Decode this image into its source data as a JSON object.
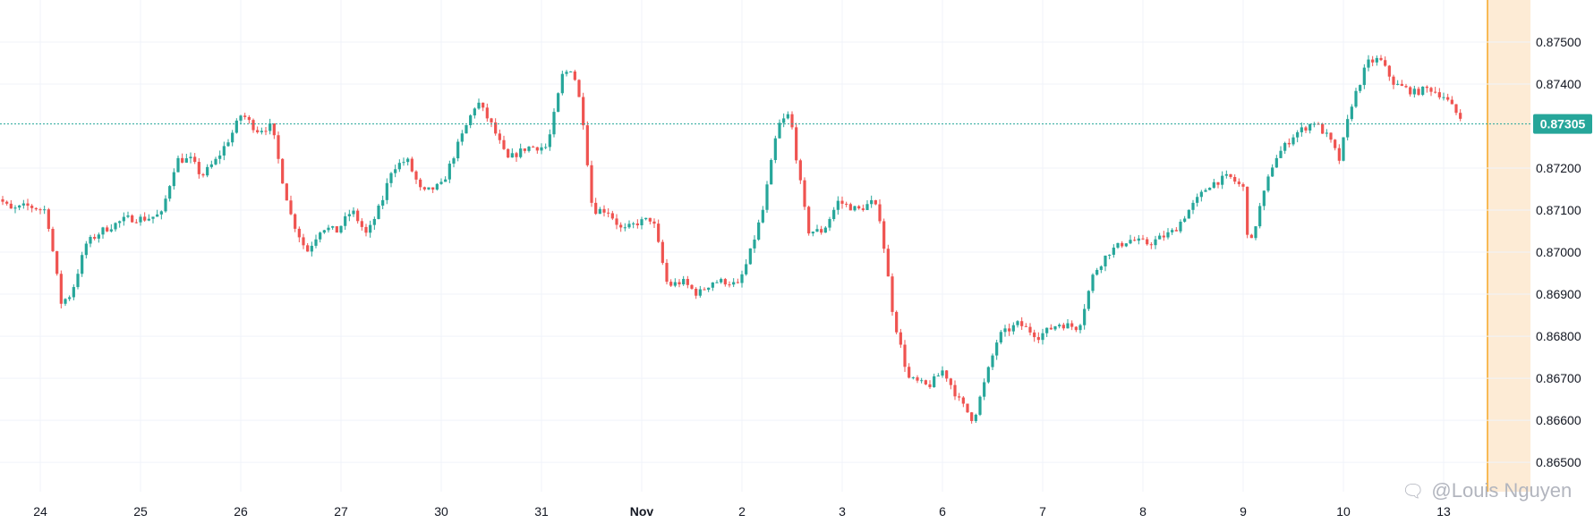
{
  "watermark": {
    "icon": "chat-bubble-icon",
    "text": "@Louis Nguyen"
  },
  "colors": {
    "up": "#26a69a",
    "down": "#ef5350",
    "grid": "#f0f3fa",
    "price_line": "#26a69a",
    "highlight": "#fdebd5",
    "highlight_edge": "#f5a623",
    "axis_text": "#131722"
  },
  "chart_data": {
    "type": "candlestick",
    "title": "",
    "xlabel": "",
    "ylabel": "",
    "ylim": [
      0.8643,
      0.876
    ],
    "grid": true,
    "current_price": 0.87305,
    "current_price_label": "0.87305",
    "y_ticks": [
      {
        "value": 0.875,
        "label": "0.87500"
      },
      {
        "value": 0.874,
        "label": "0.87400"
      },
      {
        "value": 0.872,
        "label": "0.87200"
      },
      {
        "value": 0.871,
        "label": "0.87100"
      },
      {
        "value": 0.87,
        "label": "0.87000"
      },
      {
        "value": 0.869,
        "label": "0.86900"
      },
      {
        "value": 0.868,
        "label": "0.86800"
      },
      {
        "value": 0.867,
        "label": "0.86700"
      },
      {
        "value": 0.866,
        "label": "0.86600"
      },
      {
        "value": 0.865,
        "label": "0.86500"
      }
    ],
    "x_ticks": [
      {
        "day": 0.5,
        "label": "24"
      },
      {
        "day": 1.5,
        "label": "25"
      },
      {
        "day": 2.5,
        "label": "26"
      },
      {
        "day": 3.5,
        "label": "27"
      },
      {
        "day": 4.5,
        "label": "30"
      },
      {
        "day": 5.5,
        "label": "31"
      },
      {
        "day": 6.5,
        "label": "Nov",
        "bold": true
      },
      {
        "day": 7.5,
        "label": "2"
      },
      {
        "day": 8.5,
        "label": "3"
      },
      {
        "day": 9.5,
        "label": "6"
      },
      {
        "day": 10.5,
        "label": "7"
      },
      {
        "day": 11.5,
        "label": "8"
      },
      {
        "day": 12.5,
        "label": "9"
      },
      {
        "day": 13.5,
        "label": "10"
      },
      {
        "day": 14.5,
        "label": "13"
      }
    ],
    "anchors": [
      [
        0.0,
        0.872
      ],
      [
        0.05,
        0.8712
      ],
      [
        0.12,
        0.8713
      ],
      [
        0.25,
        0.871
      ],
      [
        0.4,
        0.8711
      ],
      [
        0.6,
        0.871
      ],
      [
        0.75,
        0.8688
      ],
      [
        0.85,
        0.869
      ],
      [
        1.0,
        0.8702
      ],
      [
        1.15,
        0.8705
      ],
      [
        1.4,
        0.8708
      ],
      [
        1.6,
        0.8708
      ],
      [
        1.75,
        0.8709
      ],
      [
        1.9,
        0.8722
      ],
      [
        2.05,
        0.8722
      ],
      [
        2.15,
        0.8718
      ],
      [
        2.3,
        0.8722
      ],
      [
        2.45,
        0.8728
      ],
      [
        2.55,
        0.8733
      ],
      [
        2.7,
        0.8729
      ],
      [
        2.85,
        0.873
      ],
      [
        2.95,
        0.8718
      ],
      [
        3.05,
        0.8708
      ],
      [
        3.2,
        0.87
      ],
      [
        3.35,
        0.8706
      ],
      [
        3.5,
        0.8705
      ],
      [
        3.65,
        0.871
      ],
      [
        3.8,
        0.8704
      ],
      [
        3.95,
        0.8712
      ],
      [
        4.05,
        0.872
      ],
      [
        4.2,
        0.8722
      ],
      [
        4.35,
        0.8714
      ],
      [
        4.55,
        0.8716
      ],
      [
        4.7,
        0.8725
      ],
      [
        4.9,
        0.8736
      ],
      [
        5.05,
        0.873
      ],
      [
        5.2,
        0.8722
      ],
      [
        5.4,
        0.8725
      ],
      [
        5.6,
        0.8725
      ],
      [
        5.75,
        0.8742
      ],
      [
        5.85,
        0.8744
      ],
      [
        5.95,
        0.8733
      ],
      [
        6.05,
        0.871
      ],
      [
        6.2,
        0.871
      ],
      [
        6.35,
        0.8705
      ],
      [
        6.5,
        0.8707
      ],
      [
        6.65,
        0.8708
      ],
      [
        6.8,
        0.8692
      ],
      [
        6.95,
        0.8693
      ],
      [
        7.1,
        0.869
      ],
      [
        7.25,
        0.8693
      ],
      [
        7.4,
        0.8693
      ],
      [
        7.5,
        0.8692
      ],
      [
        7.6,
        0.8698
      ],
      [
        7.75,
        0.871
      ],
      [
        7.9,
        0.873
      ],
      [
        8.02,
        0.8733
      ],
      [
        8.1,
        0.872
      ],
      [
        8.2,
        0.8705
      ],
      [
        8.35,
        0.8705
      ],
      [
        8.5,
        0.8712
      ],
      [
        8.7,
        0.871
      ],
      [
        8.85,
        0.8712
      ],
      [
        8.92,
        0.8708
      ],
      [
        9.05,
        0.8685
      ],
      [
        9.2,
        0.867
      ],
      [
        9.4,
        0.8668
      ],
      [
        9.55,
        0.8672
      ],
      [
        9.7,
        0.8665
      ],
      [
        9.85,
        0.866
      ],
      [
        9.95,
        0.8668
      ],
      [
        10.1,
        0.868
      ],
      [
        10.3,
        0.8683
      ],
      [
        10.5,
        0.868
      ],
      [
        10.7,
        0.8683
      ],
      [
        10.9,
        0.8682
      ],
      [
        11.05,
        0.8695
      ],
      [
        11.2,
        0.87
      ],
      [
        11.4,
        0.8703
      ],
      [
        11.6,
        0.8702
      ],
      [
        11.85,
        0.8705
      ],
      [
        12.0,
        0.871
      ],
      [
        12.2,
        0.8716
      ],
      [
        12.4,
        0.8718
      ],
      [
        12.55,
        0.8715
      ],
      [
        12.6,
        0.87
      ],
      [
        12.7,
        0.871
      ],
      [
        12.85,
        0.8722
      ],
      [
        13.05,
        0.8728
      ],
      [
        13.25,
        0.8731
      ],
      [
        13.4,
        0.8727
      ],
      [
        13.5,
        0.8722
      ],
      [
        13.62,
        0.8735
      ],
      [
        13.78,
        0.8745
      ],
      [
        13.9,
        0.8746
      ],
      [
        14.05,
        0.874
      ],
      [
        14.25,
        0.8738
      ],
      [
        14.4,
        0.8739
      ],
      [
        14.55,
        0.8737
      ],
      [
        14.7,
        0.8732
      ]
    ]
  }
}
